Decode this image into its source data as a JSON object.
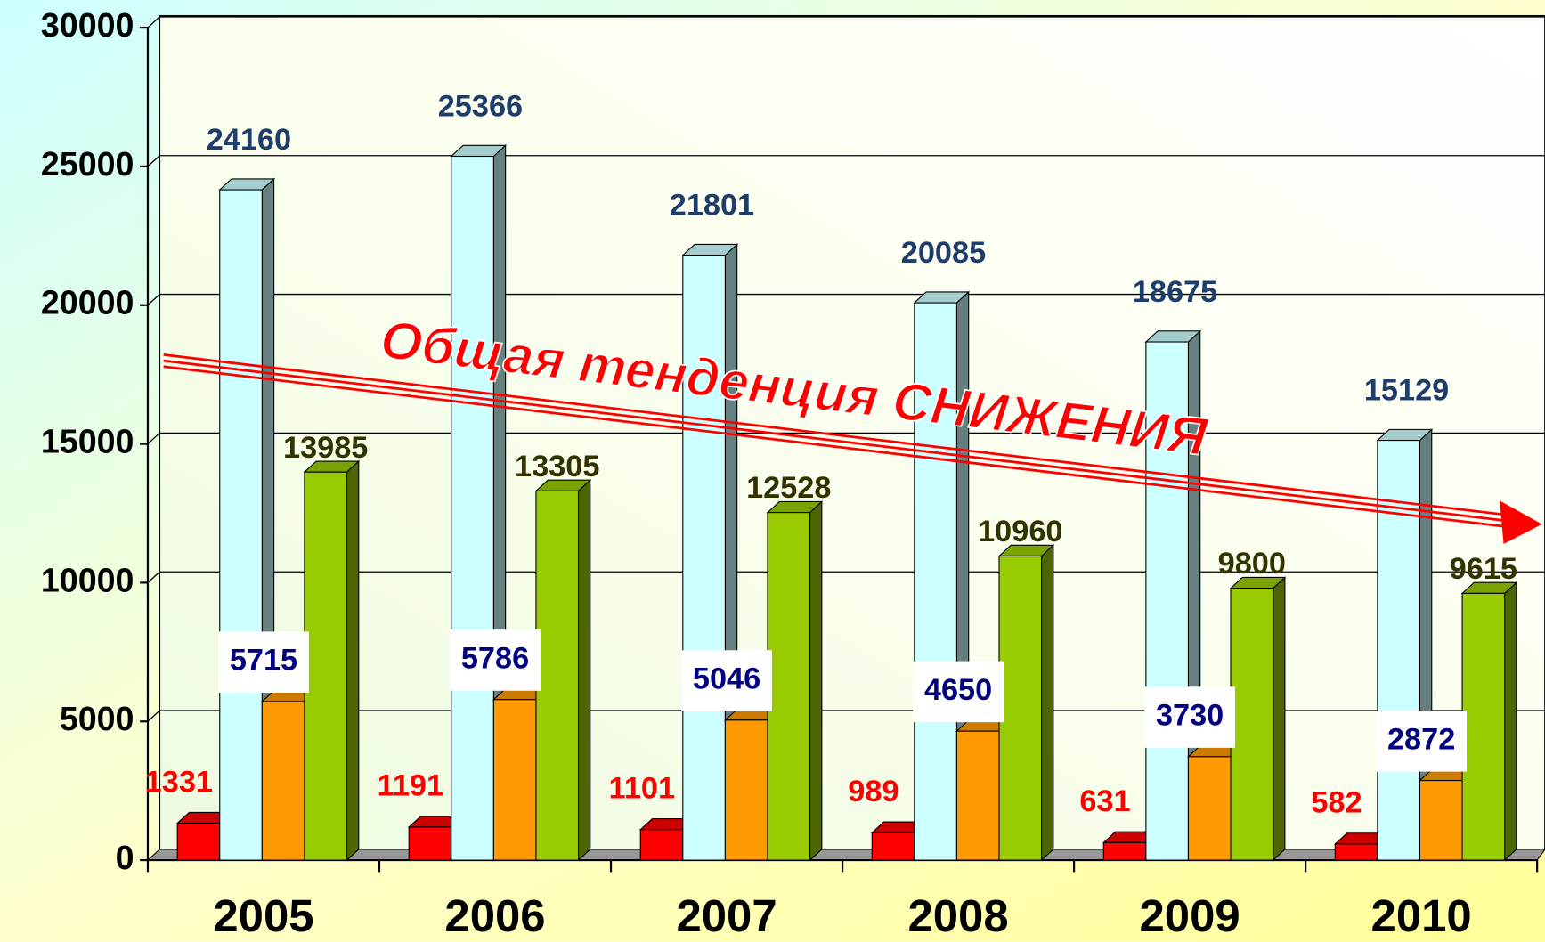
{
  "chart_data": {
    "type": "bar3d",
    "categories": [
      "2005",
      "2006",
      "2007",
      "2008",
      "2009",
      "2010"
    ],
    "series": [
      {
        "color": "#ff0000",
        "label_color": "#ff0000",
        "values": [
          1331,
          1191,
          1101,
          989,
          631,
          582
        ]
      },
      {
        "color": "#ccffff",
        "label_color": "#1f3d6b",
        "values": [
          24160,
          25366,
          21801,
          20085,
          18675,
          15129
        ]
      },
      {
        "color": "#ff9900",
        "label_color": "#000080",
        "values": [
          5715,
          5786,
          5046,
          4650,
          3730,
          2872
        ]
      },
      {
        "color": "#99cc00",
        "label_color": "#333300",
        "values": [
          13985,
          13305,
          12528,
          10960,
          9800,
          9615
        ]
      }
    ],
    "ylim": [
      0,
      30000
    ],
    "yticks": [
      0,
      5000,
      10000,
      15000,
      20000,
      25000,
      30000
    ],
    "grid": true,
    "annotation": "Общая тенденция СНИЖЕНИЯ"
  }
}
